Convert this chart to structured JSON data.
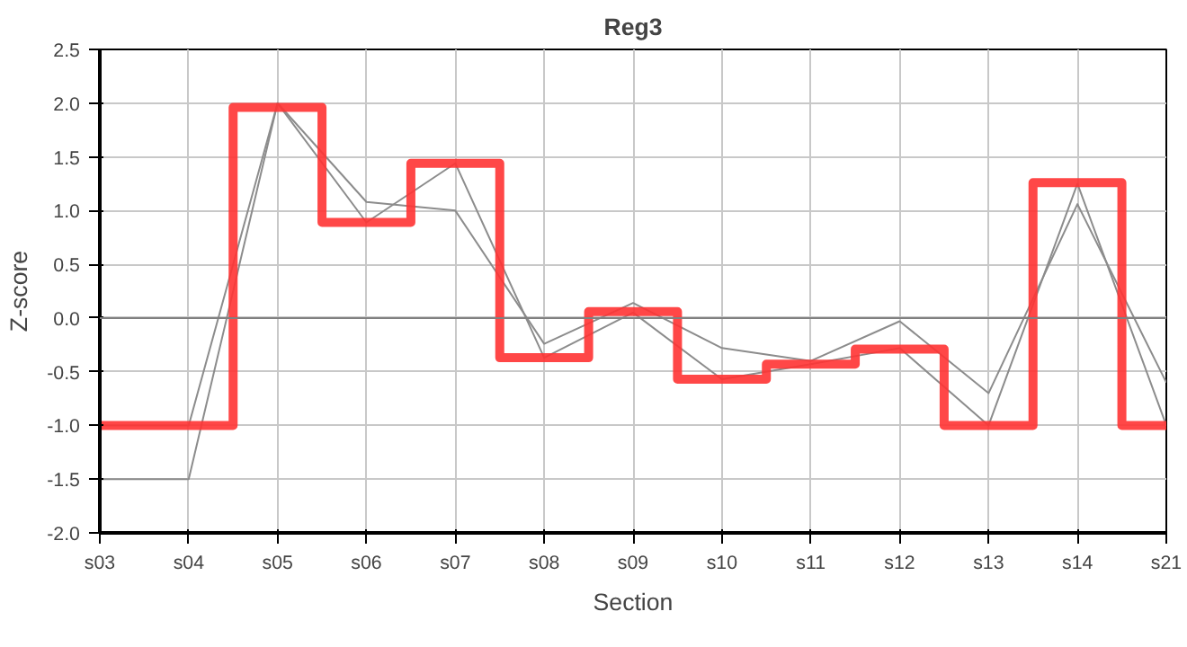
{
  "chart_data": {
    "type": "line",
    "title": "Reg3",
    "xlabel": "Section",
    "ylabel": "Z-score",
    "categories": [
      "s03",
      "s04",
      "s05",
      "s06",
      "s07",
      "s08",
      "s09",
      "s10",
      "s11",
      "s12",
      "s13",
      "s14",
      "s21"
    ],
    "series": [
      {
        "color": "#8c8c8c",
        "values": [
          -1.5,
          -1.5,
          2.0,
          0.89,
          1.44,
          -0.37,
          0.05,
          -0.57,
          -0.43,
          -0.28,
          -1.0,
          1.25,
          -1.0
        ]
      },
      {
        "color": "#8c8c8c",
        "values": [
          -1.0,
          -1.0,
          2.0,
          1.08,
          1.0,
          -0.24,
          0.14,
          -0.28,
          -0.4,
          -0.03,
          -0.7,
          1.06,
          -0.6
        ]
      },
      {
        "type": "step",
        "color": "#ff3333",
        "values": [
          -1.0,
          -1.0,
          1.96,
          0.89,
          1.44,
          -0.37,
          0.06,
          -0.57,
          -0.43,
          -0.29,
          -1.0,
          1.26,
          -1.0
        ]
      }
    ],
    "ylim": [
      -2.0,
      2.5
    ],
    "yticks": [
      {
        "value": -2.0,
        "label": "-2.0"
      },
      {
        "value": -1.5,
        "label": "-1.5"
      },
      {
        "value": -1.0,
        "label": "-1.0"
      },
      {
        "value": -0.5,
        "label": "-0.5"
      },
      {
        "value": 0,
        "label": "0.0"
      },
      {
        "value": 0.5,
        "label": "0.5"
      },
      {
        "value": 1.0,
        "label": "1.0"
      },
      {
        "value": 1.5,
        "label": "1.5"
      },
      {
        "value": 2.0,
        "label": "2.0"
      },
      {
        "value": 2.5,
        "label": "2.5"
      }
    ],
    "ref_lines": [
      {
        "axis": "y",
        "value": 0,
        "color": "#808080"
      }
    ],
    "grid": true,
    "marker": "none",
    "line_style": "solid"
  }
}
